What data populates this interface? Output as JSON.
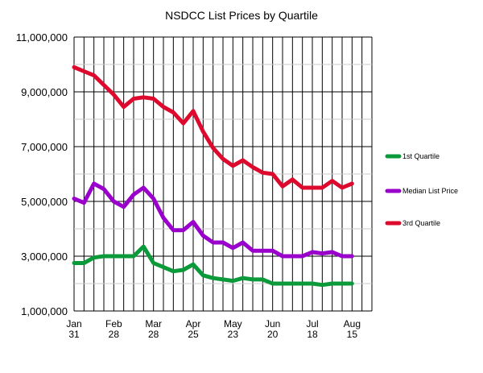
{
  "chart_data": {
    "type": "line",
    "title": "NSDCC List Prices by Quartile",
    "xlabel": "",
    "ylabel": "",
    "ylim": [
      1000000,
      11000000
    ],
    "grid": true,
    "legend_position": "right",
    "y_ticks": [
      "11,000,000",
      "9,000,000",
      "7,000,000",
      "5,000,000",
      "3,000,000",
      "1,000,000"
    ],
    "x_ticks": [
      {
        "month": "Jan",
        "day": "31"
      },
      {
        "month": "Feb",
        "day": "28"
      },
      {
        "month": "Mar",
        "day": "28"
      },
      {
        "month": "Apr",
        "day": "25"
      },
      {
        "month": "May",
        "day": "23"
      },
      {
        "month": "Jun",
        "day": "20"
      },
      {
        "month": "Jul",
        "day": "18"
      },
      {
        "month": "Aug",
        "day": "15"
      }
    ],
    "series": [
      {
        "name": "1st Quartile",
        "color": "#0a9a3a",
        "values": [
          2750000,
          2750000,
          2950000,
          3000000,
          3000000,
          3000000,
          3000000,
          3350000,
          2750000,
          2600000,
          2450000,
          2500000,
          2700000,
          2300000,
          2200000,
          2150000,
          2100000,
          2200000,
          2150000,
          2150000,
          2000000,
          2000000,
          2000000,
          2000000,
          2000000,
          1950000,
          2000000,
          2000000,
          2000000
        ]
      },
      {
        "name": "Median List Price",
        "color": "#9a00cc",
        "values": [
          5100000,
          4950000,
          5650000,
          5450000,
          5000000,
          4800000,
          5250000,
          5500000,
          5100000,
          4400000,
          3950000,
          3950000,
          4250000,
          3750000,
          3500000,
          3500000,
          3300000,
          3500000,
          3200000,
          3200000,
          3200000,
          3000000,
          3000000,
          3000000,
          3150000,
          3100000,
          3150000,
          3000000,
          3000000
        ]
      },
      {
        "name": "3rd Quartile",
        "color": "#dd0a2e",
        "values": [
          9900000,
          9750000,
          9600000,
          9250000,
          8900000,
          8450000,
          8750000,
          8800000,
          8750000,
          8450000,
          8250000,
          7850000,
          8300000,
          7550000,
          6950000,
          6550000,
          6300000,
          6500000,
          6250000,
          6050000,
          6000000,
          5550000,
          5800000,
          5500000,
          5500000,
          5500000,
          5750000,
          5500000,
          5650000
        ]
      }
    ]
  }
}
